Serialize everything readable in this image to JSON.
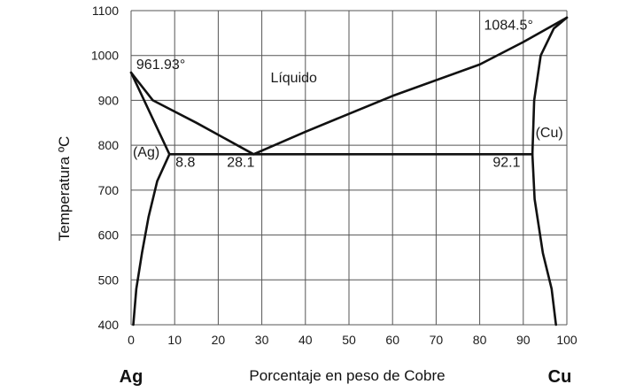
{
  "chart_data": {
    "type": "line",
    "xlabel": "Porcentaje en peso de Cobre",
    "ylabel": "Temperatura ºC",
    "xlim": [
      0,
      100
    ],
    "ylim": [
      400,
      1100
    ],
    "xticks": [
      0,
      10,
      20,
      30,
      40,
      50,
      60,
      70,
      80,
      90,
      100
    ],
    "yticks": [
      400,
      500,
      600,
      700,
      800,
      900,
      1000,
      1100
    ],
    "grid": true,
    "end_labels": {
      "left": "Ag",
      "right": "Cu"
    },
    "series": [
      {
        "id": "liquidus-ag",
        "points": [
          [
            0,
            961.93
          ],
          [
            5,
            900
          ],
          [
            15,
            850
          ],
          [
            28.1,
            780
          ]
        ]
      },
      {
        "id": "liquidus-cu",
        "points": [
          [
            28.1,
            780
          ],
          [
            40,
            830
          ],
          [
            60,
            910
          ],
          [
            80,
            980
          ],
          [
            90,
            1030
          ],
          [
            100,
            1084.5
          ]
        ]
      },
      {
        "id": "eutectic",
        "points": [
          [
            8.8,
            780
          ],
          [
            92.1,
            780
          ]
        ]
      },
      {
        "id": "solidus-ag",
        "points": [
          [
            0,
            961.93
          ],
          [
            8.8,
            780
          ]
        ]
      },
      {
        "id": "solvus-ag",
        "points": [
          [
            8.8,
            780
          ],
          [
            6,
            720
          ],
          [
            4,
            640
          ],
          [
            2.5,
            560
          ],
          [
            1.2,
            480
          ],
          [
            0.5,
            400
          ]
        ]
      },
      {
        "id": "solidus-cu",
        "points": [
          [
            92.1,
            780
          ],
          [
            92.5,
            900
          ],
          [
            94,
            1000
          ],
          [
            97,
            1060
          ],
          [
            100,
            1084.5
          ]
        ]
      },
      {
        "id": "solvus-cu",
        "points": [
          [
            92.1,
            780
          ],
          [
            92.6,
            680
          ],
          [
            94.5,
            560
          ],
          [
            96.5,
            480
          ],
          [
            97.5,
            400
          ]
        ]
      }
    ],
    "annotations": [
      {
        "text": "961.93°",
        "x": 1.2,
        "y": 970
      },
      {
        "text": "1084.5°",
        "x": 81,
        "y": 1058
      },
      {
        "text": "Líquido",
        "x": 32,
        "y": 940
      },
      {
        "text": "(Ag)",
        "x": 0.4,
        "y": 775
      },
      {
        "text": "8.8",
        "x": 10.2,
        "y": 752
      },
      {
        "text": "28.1",
        "x": 22,
        "y": 752
      },
      {
        "text": "92.1",
        "x": 83,
        "y": 752
      },
      {
        "text": "(Cu)",
        "x": 92.8,
        "y": 818
      }
    ]
  }
}
